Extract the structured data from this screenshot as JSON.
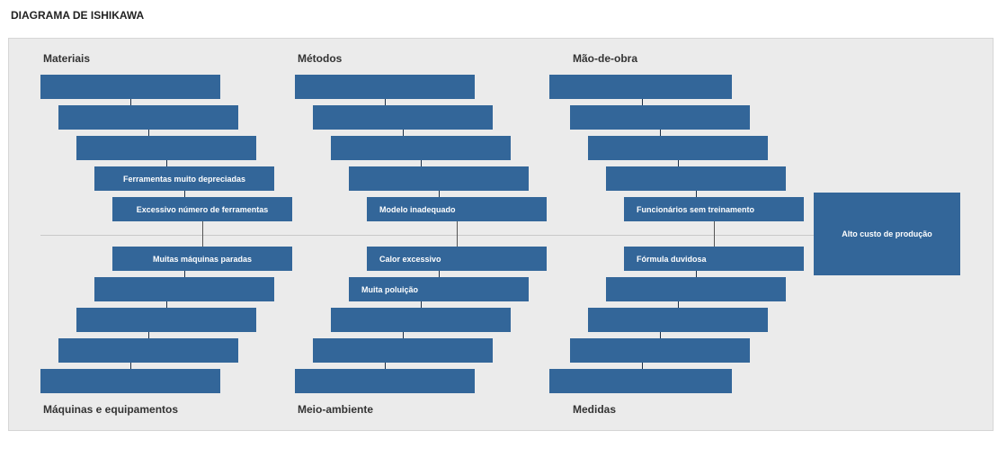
{
  "title": "DIAGRAMA DE ISHIKAWA",
  "effect": "Alto custo de produção",
  "categories": {
    "top": [
      {
        "label": "Materiais",
        "causes": [
          "",
          "",
          "",
          "Ferramentas muito depreciadas",
          "Excessivo número de ferramentas"
        ]
      },
      {
        "label": "Métodos",
        "causes": [
          "",
          "",
          "",
          "",
          "Modelo inadequado"
        ]
      },
      {
        "label": "Mão-de-obra",
        "causes": [
          "",
          "",
          "",
          "",
          "Funcionários sem treinamento"
        ]
      }
    ],
    "bottom": [
      {
        "label": "Máquinas e equipamentos",
        "causes": [
          "Muitas máquinas paradas",
          "",
          "",
          "",
          ""
        ]
      },
      {
        "label": "Meio-ambiente",
        "causes": [
          "Calor excessivo",
          "Muita poluição",
          "",
          "",
          ""
        ]
      },
      {
        "label": "Medidas",
        "causes": [
          "Fórmula duvidosa",
          "",
          "",
          "",
          ""
        ]
      }
    ]
  },
  "colors": {
    "box": "#336699",
    "panel": "#ebebeb",
    "spine": "#c9c9c9"
  }
}
